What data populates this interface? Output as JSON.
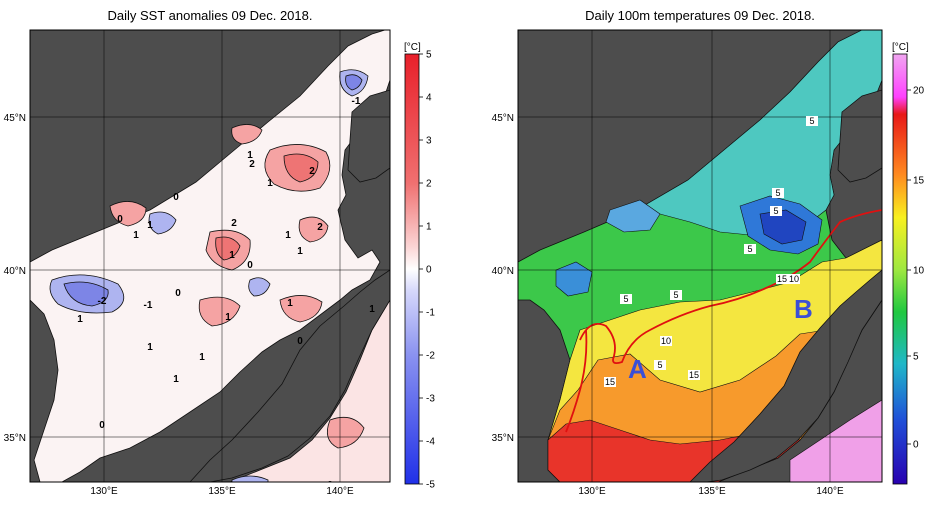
{
  "left_panel": {
    "title": "Daily SST anomalies 09 Dec. 2018.",
    "unit": "[°C]",
    "lon_ticks": [
      "130°E",
      "135°E",
      "140°E"
    ],
    "lat_ticks": [
      "45°N",
      "40°N",
      "35°N"
    ],
    "colorbar_ticks": [
      "5",
      "4",
      "3",
      "2",
      "1",
      "0",
      "-1",
      "-2",
      "-3",
      "-4",
      "-5"
    ],
    "contour_labels": [
      "-1",
      "1",
      "2",
      "2",
      "1",
      "0",
      "1",
      "1",
      "2",
      "2",
      "1",
      "1",
      "0",
      "1",
      "0",
      "-2",
      "-1",
      "0",
      "1",
      "1",
      "1",
      "1",
      "1",
      "1",
      "0",
      "0",
      "2",
      "1"
    ],
    "colors": {
      "land": "#4d4d4d",
      "positive": "#e8484b",
      "negative": "#4656e6"
    }
  },
  "right_panel": {
    "title": "Daily 100m temperatures 09 Dec. 2018.",
    "unit": "[°C]",
    "lon_ticks": [
      "130°E",
      "135°E",
      "140°E"
    ],
    "lat_ticks": [
      "45°N",
      "40°N",
      "35°N"
    ],
    "colorbar_ticks": [
      "20",
      "15",
      "10",
      "5",
      "0"
    ],
    "contour_labels": [
      "5",
      "5",
      "5",
      "5",
      "5",
      "15",
      "10",
      "5",
      "10",
      "5",
      "15",
      "15"
    ],
    "markers": [
      "A",
      "B"
    ],
    "colors": {
      "land": "#4d4d4d",
      "front_line": "#e01010",
      "marker": "#3b4fd6"
    }
  }
}
